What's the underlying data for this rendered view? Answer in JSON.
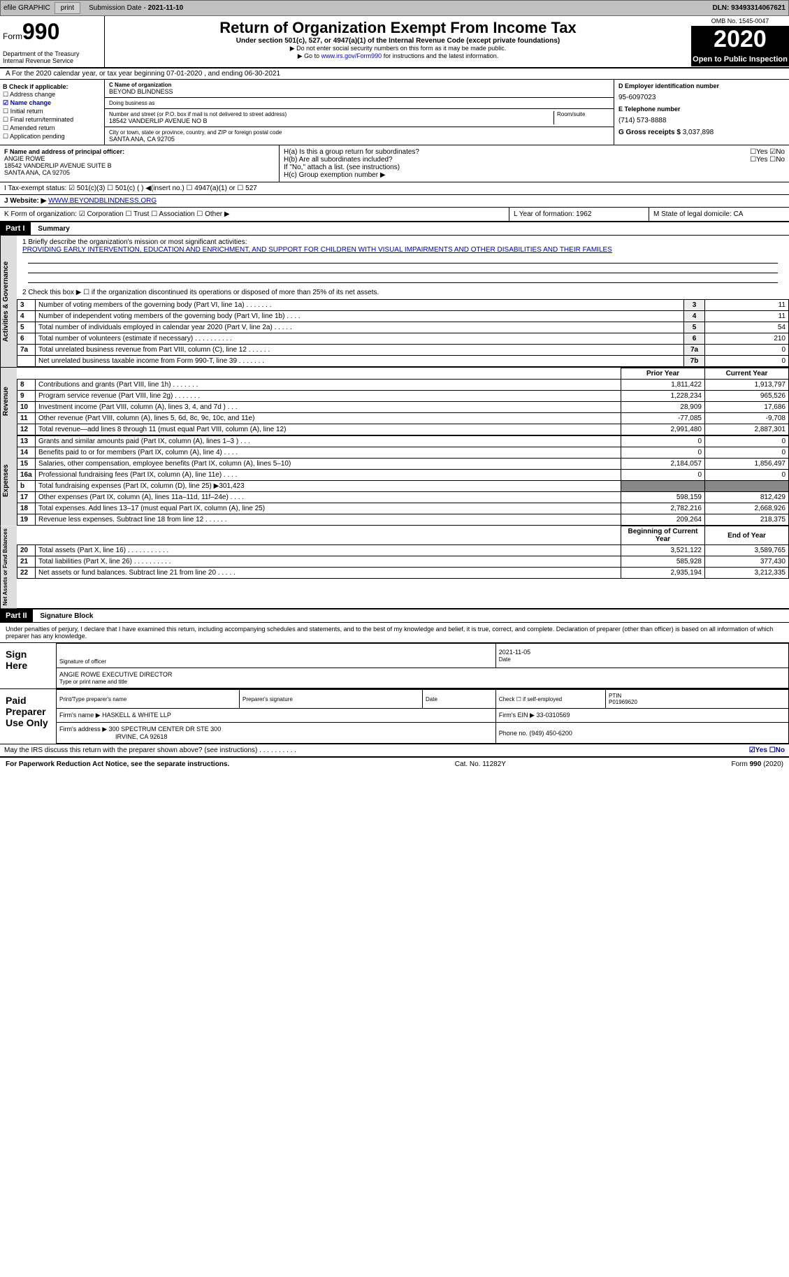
{
  "topbar": {
    "efile": "efile GRAPHIC",
    "print": "print",
    "subdate_label": "Submission Date - ",
    "subdate": "2021-11-10",
    "dln": "DLN: 93493314067621"
  },
  "header": {
    "form_label": "Form",
    "form_num": "990",
    "dept": "Department of the Treasury\nInternal Revenue Service",
    "title": "Return of Organization Exempt From Income Tax",
    "sub": "Under section 501(c), 527, or 4947(a)(1) of the Internal Revenue Code (except private foundations)",
    "note1": "▶ Do not enter social security numbers on this form as it may be made public.",
    "note2_pre": "▶ Go to ",
    "note2_link": "www.irs.gov/Form990",
    "note2_post": " for instructions and the latest information.",
    "omb": "OMB No. 1545-0047",
    "year": "2020",
    "open": "Open to Public Inspection"
  },
  "row_a": "A For the 2020 calendar year, or tax year beginning 07-01-2020   , and ending 06-30-2021",
  "box_b": {
    "title": "B Check if applicable:",
    "items": [
      "☐ Address change",
      "☑ Name change",
      "☐ Initial return",
      "☐ Final return/terminated",
      "☐ Amended return",
      "☐ Application pending"
    ]
  },
  "box_c": {
    "name_label": "C Name of organization",
    "name": "BEYOND BLINDNESS",
    "dba_label": "Doing business as",
    "dba": "",
    "addr_label": "Number and street (or P.O. box if mail is not delivered to street address)",
    "room_label": "Room/suite",
    "addr": "18542 VANDERLIP AVENUE NO B",
    "city_label": "City or town, state or province, country, and ZIP or foreign postal code",
    "city": "SANTA ANA, CA  92705"
  },
  "box_d": {
    "ein_label": "D Employer identification number",
    "ein": "95-6097023",
    "tel_label": "E Telephone number",
    "tel": "(714) 573-8888",
    "gross_label": "G Gross receipts $ ",
    "gross": "3,037,898"
  },
  "box_f": {
    "label": "F Name and address of principal officer:",
    "name": "ANGIE ROWE",
    "addr1": "18542 VANDERLIP AVENUE SUITE B",
    "addr2": "SANTA ANA, CA  92705"
  },
  "box_h": {
    "ha": "H(a)  Is this a group return for subordinates?",
    "ha_ans": "☐Yes ☑No",
    "hb": "H(b)  Are all subordinates included?",
    "hb_ans": "☐Yes ☐No",
    "hb_note": "If \"No,\" attach a list. (see instructions)",
    "hc": "H(c)  Group exemption number ▶"
  },
  "line_i": "I    Tax-exempt status:   ☑ 501(c)(3)   ☐ 501(c) (  ) ◀(insert no.)   ☐ 4947(a)(1) or   ☐ 527",
  "line_j_label": "J   Website: ▶ ",
  "line_j": "WWW.BEYONDBLINDNESS.ORG",
  "box_k": "K Form of organization:  ☑ Corporation  ☐ Trust  ☐ Association  ☐ Other ▶",
  "box_l": "L Year of formation: 1962",
  "box_m": "M State of legal domicile: CA",
  "part1": {
    "label": "Part I",
    "title": "Summary",
    "q1_label": "1  Briefly describe the organization's mission or most significant activities:",
    "q1": "PROVIDING EARLY INTERVENTION, EDUCATION AND ENRICHMENT, AND SUPPORT FOR CHILDREN WITH VISUAL IMPAIRMENTS AND OTHER DISABILITIES AND THEIR FAMILES",
    "q2": "2   Check this box ▶ ☐  if the organization discontinued its operations or disposed of more than 25% of its net assets.",
    "sidebar1": "Activities & Governance",
    "sidebar2": "Revenue",
    "sidebar3": "Expenses",
    "sidebar4": "Net Assets or Fund Balances",
    "gov_rows": [
      {
        "n": "3",
        "d": "Number of voting members of the governing body (Part VI, line 1a)   .   .   .   .   .   .   .",
        "b": "3",
        "v": "11"
      },
      {
        "n": "4",
        "d": "Number of independent voting members of the governing body (Part VI, line 1b)   .   .   .   .",
        "b": "4",
        "v": "11"
      },
      {
        "n": "5",
        "d": "Total number of individuals employed in calendar year 2020 (Part V, line 2a)   .   .   .   .   .",
        "b": "5",
        "v": "54"
      },
      {
        "n": "6",
        "d": "Total number of volunteers (estimate if necessary)   .   .   .   .   .   .   .   .   .   .",
        "b": "6",
        "v": "210"
      },
      {
        "n": "7a",
        "d": "Total unrelated business revenue from Part VIII, column (C), line 12   .   .   .   .   .   .",
        "b": "7a",
        "v": "0"
      },
      {
        "n": "",
        "d": "Net unrelated business taxable income from Form 990-T, line 39   .   .   .   .   .   .   .",
        "b": "7b",
        "v": "0"
      }
    ],
    "col_hdr1": "Prior Year",
    "col_hdr2": "Current Year",
    "rev_rows": [
      {
        "n": "8",
        "d": "Contributions and grants (Part VIII, line 1h)   .   .   .   .   .   .   .",
        "v1": "1,811,422",
        "v2": "1,913,797"
      },
      {
        "n": "9",
        "d": "Program service revenue (Part VIII, line 2g)   .   .   .   .   .   .   .",
        "v1": "1,228,234",
        "v2": "965,526"
      },
      {
        "n": "10",
        "d": "Investment income (Part VIII, column (A), lines 3, 4, and 7d )   .   .   .",
        "v1": "28,909",
        "v2": "17,686"
      },
      {
        "n": "11",
        "d": "Other revenue (Part VIII, column (A), lines 5, 6d, 8c, 9c, 10c, and 11e)",
        "v1": "-77,085",
        "v2": "-9,708"
      },
      {
        "n": "12",
        "d": "Total revenue—add lines 8 through 11 (must equal Part VIII, column (A), line 12)",
        "v1": "2,991,480",
        "v2": "2,887,301"
      }
    ],
    "exp_rows": [
      {
        "n": "13",
        "d": "Grants and similar amounts paid (Part IX, column (A), lines 1–3 )   .   .   .",
        "v1": "0",
        "v2": "0"
      },
      {
        "n": "14",
        "d": "Benefits paid to or for members (Part IX, column (A), line 4)   .   .   .   .",
        "v1": "0",
        "v2": "0"
      },
      {
        "n": "15",
        "d": "Salaries, other compensation, employee benefits (Part IX, column (A), lines 5–10)",
        "v1": "2,184,057",
        "v2": "1,856,497"
      },
      {
        "n": "16a",
        "d": "Professional fundraising fees (Part IX, column (A), line 11e)   .   .   .   .",
        "v1": "0",
        "v2": "0"
      },
      {
        "n": "b",
        "d": "Total fundraising expenses (Part IX, column (D), line 25) ▶301,423",
        "v1": "",
        "v2": "",
        "shade": true
      },
      {
        "n": "17",
        "d": "Other expenses (Part IX, column (A), lines 11a–11d, 11f–24e)   .   .   .   .",
        "v1": "598,159",
        "v2": "812,429"
      },
      {
        "n": "18",
        "d": "Total expenses. Add lines 13–17 (must equal Part IX, column (A), line 25)",
        "v1": "2,782,216",
        "v2": "2,668,926"
      },
      {
        "n": "19",
        "d": "Revenue less expenses. Subtract line 18 from line 12   .   .   .   .   .   .",
        "v1": "209,264",
        "v2": "218,375"
      }
    ],
    "net_hdr1": "Beginning of Current Year",
    "net_hdr2": "End of Year",
    "net_rows": [
      {
        "n": "20",
        "d": "Total assets (Part X, line 16)   .   .   .   .   .   .   .   .   .   .   .",
        "v1": "3,521,122",
        "v2": "3,589,765"
      },
      {
        "n": "21",
        "d": "Total liabilities (Part X, line 26)   .   .   .   .   .   .   .   .   .   .",
        "v1": "585,928",
        "v2": "377,430"
      },
      {
        "n": "22",
        "d": "Net assets or fund balances. Subtract line 21 from line 20   .   .   .   .   .",
        "v1": "2,935,194",
        "v2": "3,212,335"
      }
    ]
  },
  "part2": {
    "label": "Part II",
    "title": "Signature Block",
    "decl": "Under penalties of perjury, I declare that I have examined this return, including accompanying schedules and statements, and to the best of my knowledge and belief, it is true, correct, and complete. Declaration of preparer (other than officer) is based on all information of which preparer has any knowledge.",
    "sign_here": "Sign Here",
    "sig_officer": "Signature of officer",
    "sig_date": "2021-11-05",
    "date_lbl": "Date",
    "officer_name": "ANGIE ROWE EXECUTIVE DIRECTOR",
    "officer_lbl": "Type or print name and title",
    "paid": "Paid Preparer Use Only",
    "prep_name_lbl": "Print/Type preparer's name",
    "prep_sig_lbl": "Preparer's signature",
    "prep_date_lbl": "Date",
    "prep_check": "Check ☐ if self-employed",
    "ptin_lbl": "PTIN",
    "ptin": "P01969620",
    "firm_name_lbl": "Firm's name    ▶ ",
    "firm_name": "HASKELL & WHITE LLP",
    "firm_ein_lbl": "Firm's EIN ▶ ",
    "firm_ein": "33-0310569",
    "firm_addr_lbl": "Firm's address ▶ ",
    "firm_addr": "300 SPECTRUM CENTER DR STE 300",
    "firm_city": "IRVINE, CA  92618",
    "firm_phone_lbl": "Phone no. ",
    "firm_phone": "(949) 450-6200",
    "may_irs": "May the IRS discuss this return with the preparer shown above? (see instructions)   .   .   .   .   .   .   .   .   .   .",
    "may_irs_ans": "☑Yes  ☐No"
  },
  "footer": {
    "pra": "For Paperwork Reduction Act Notice, see the separate instructions.",
    "cat": "Cat. No. 11282Y",
    "form": "Form 990 (2020)"
  }
}
